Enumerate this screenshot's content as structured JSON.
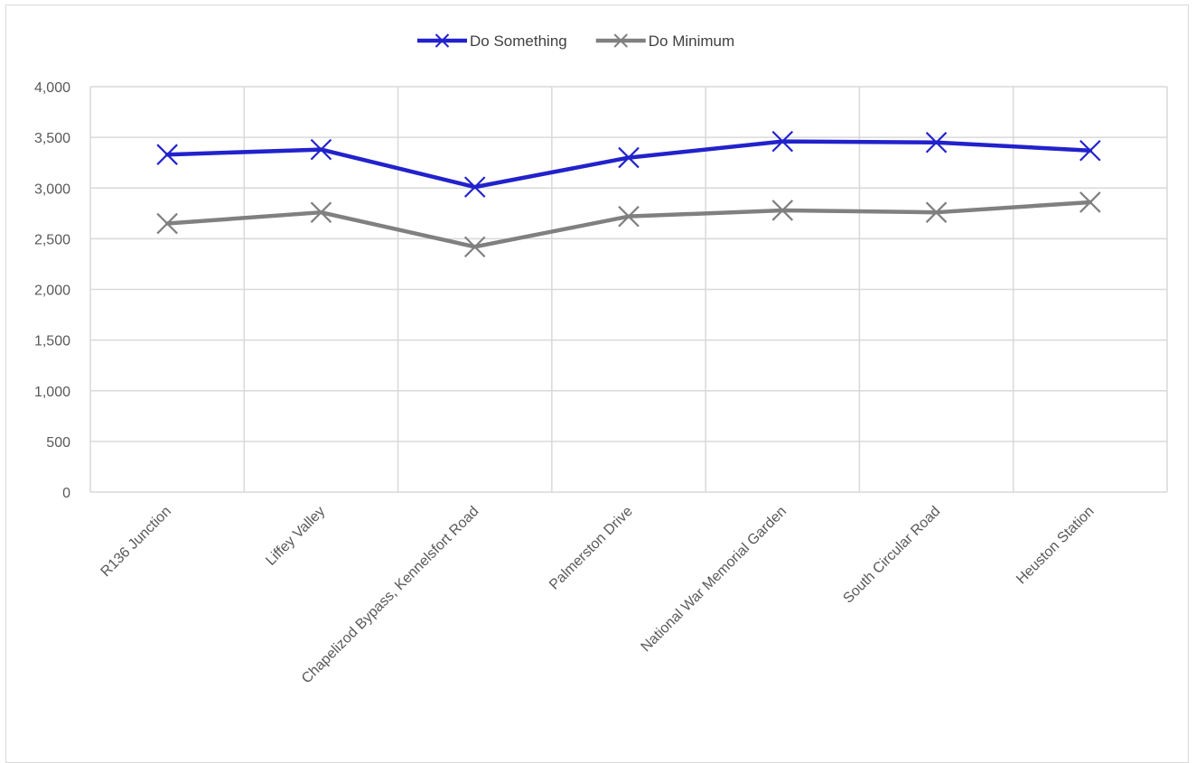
{
  "chart_data": {
    "type": "line",
    "categories": [
      "R136 Junction",
      "Liffey Valley",
      "Chapelizod Bypass, Kennelsfort Road",
      "Palmerston Drive",
      "National War Memorial Garden",
      "South Circular Road",
      "Heuston Station"
    ],
    "series": [
      {
        "name": "Do Something",
        "color": "#2222cc",
        "marker": "x",
        "values": [
          3330,
          3380,
          3010,
          3300,
          3460,
          3450,
          3370
        ]
      },
      {
        "name": "Do Minimum",
        "color": "#808080",
        "marker": "x",
        "values": [
          2650,
          2760,
          2420,
          2720,
          2780,
          2760,
          2860
        ]
      }
    ],
    "ylim": [
      0,
      4000
    ],
    "yticks": [
      {
        "value": 0,
        "label": "0"
      },
      {
        "value": 500,
        "label": "500"
      },
      {
        "value": 1000,
        "label": "1,000"
      },
      {
        "value": 1500,
        "label": "1,500"
      },
      {
        "value": 2000,
        "label": "2,000"
      },
      {
        "value": 2500,
        "label": "2,500"
      },
      {
        "value": 3000,
        "label": "3,000"
      },
      {
        "value": 3500,
        "label": "3,500"
      },
      {
        "value": 4000,
        "label": "4,000"
      }
    ],
    "grid": true,
    "legend_position": "top-center",
    "title": "",
    "xlabel": "",
    "ylabel": ""
  }
}
